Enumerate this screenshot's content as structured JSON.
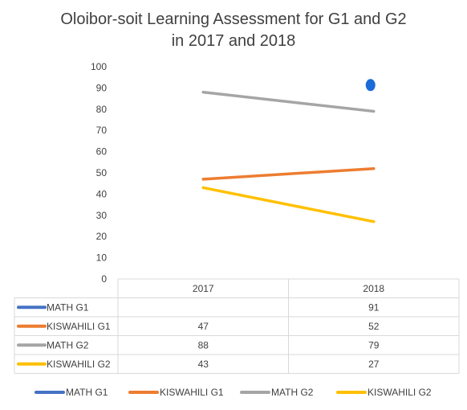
{
  "chart_data": {
    "type": "line",
    "title_line1": "Oloibor-soit Learning Assessment for G1 and G2",
    "title_line2": "in 2017 and 2018",
    "categories": [
      "2017",
      "2018"
    ],
    "ylim": [
      0,
      100
    ],
    "yticks": [
      "0",
      "10",
      "20",
      "30",
      "40",
      "50",
      "60",
      "70",
      "80",
      "90",
      "100"
    ],
    "series": [
      {
        "name": "MATH G1",
        "color": "#4472C4",
        "values": [
          null,
          91
        ],
        "labels": [
          "",
          "91"
        ]
      },
      {
        "name": "KISWAHILI G1",
        "color": "#ED7D31",
        "values": [
          47,
          52
        ],
        "labels": [
          "47",
          "52"
        ]
      },
      {
        "name": "MATH G2",
        "color": "#A5A5A5",
        "values": [
          88,
          79
        ],
        "labels": [
          "88",
          "79"
        ]
      },
      {
        "name": "KISWAHILI G2",
        "color": "#FFC000",
        "values": [
          43,
          27
        ],
        "labels": [
          "43",
          "27"
        ]
      }
    ],
    "grid": false,
    "legend": "bottom",
    "data_table": true
  }
}
